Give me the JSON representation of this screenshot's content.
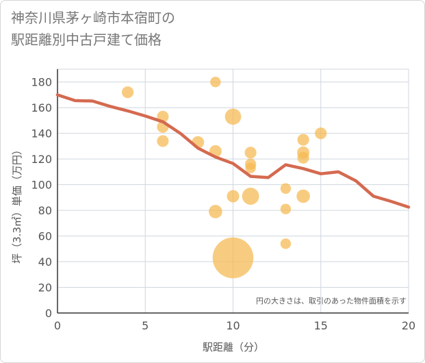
{
  "title_line1": "神奈川県茅ヶ崎市本宿町の",
  "title_line2": "駅距離別中古戸建て価格",
  "chart_data": {
    "type": "scatter",
    "xlabel": "駅距離（分）",
    "ylabel": "坪（3.3㎡）単価（万円）",
    "xlim": [
      0,
      20
    ],
    "ylim": [
      0,
      190
    ],
    "x_ticks": [
      0,
      5,
      10,
      15,
      20
    ],
    "y_ticks": [
      0,
      20,
      40,
      60,
      80,
      100,
      120,
      140,
      160,
      180
    ],
    "grid": true,
    "note": "円の大きさは、取引のあった物件面積を示す",
    "colors": {
      "bubble": "#f5b94f",
      "line": "#d46a50",
      "grid": "#cfd6de"
    },
    "points": [
      {
        "x": 4,
        "y": 172,
        "size": 1
      },
      {
        "x": 9,
        "y": 180,
        "size": 0.8
      },
      {
        "x": 6,
        "y": 153,
        "size": 1
      },
      {
        "x": 6,
        "y": 145,
        "size": 1
      },
      {
        "x": 6,
        "y": 134,
        "size": 1
      },
      {
        "x": 8,
        "y": 133,
        "size": 1.1
      },
      {
        "x": 9,
        "y": 126,
        "size": 1.1
      },
      {
        "x": 9,
        "y": 79,
        "size": 1.3
      },
      {
        "x": 10,
        "y": 153,
        "size": 1.9
      },
      {
        "x": 10,
        "y": 91,
        "size": 1.1
      },
      {
        "x": 10,
        "y": 43,
        "size": 12
      },
      {
        "x": 11,
        "y": 125,
        "size": 1
      },
      {
        "x": 11,
        "y": 116,
        "size": 0.9
      },
      {
        "x": 11,
        "y": 113,
        "size": 0.8
      },
      {
        "x": 11,
        "y": 91,
        "size": 2.1
      },
      {
        "x": 13,
        "y": 97,
        "size": 0.8
      },
      {
        "x": 13,
        "y": 81,
        "size": 0.8
      },
      {
        "x": 13,
        "y": 54,
        "size": 0.8
      },
      {
        "x": 14,
        "y": 135,
        "size": 1
      },
      {
        "x": 14,
        "y": 125,
        "size": 1.1
      },
      {
        "x": 14,
        "y": 121,
        "size": 1
      },
      {
        "x": 14,
        "y": 91,
        "size": 1.3
      },
      {
        "x": 15,
        "y": 140,
        "size": 1
      }
    ],
    "trend": [
      {
        "x": 0,
        "y": 170
      },
      {
        "x": 1,
        "y": 165.5
      },
      {
        "x": 2,
        "y": 165.2
      },
      {
        "x": 3,
        "y": 161
      },
      {
        "x": 4,
        "y": 157.5
      },
      {
        "x": 5,
        "y": 153.5
      },
      {
        "x": 6,
        "y": 149
      },
      {
        "x": 7,
        "y": 140
      },
      {
        "x": 8,
        "y": 128.5
      },
      {
        "x": 9,
        "y": 121.5
      },
      {
        "x": 10,
        "y": 116.5
      },
      {
        "x": 11,
        "y": 106.5
      },
      {
        "x": 12,
        "y": 105.5
      },
      {
        "x": 13,
        "y": 115.5
      },
      {
        "x": 14,
        "y": 112.5
      },
      {
        "x": 15,
        "y": 108.5
      },
      {
        "x": 16,
        "y": 110
      },
      {
        "x": 17,
        "y": 103
      },
      {
        "x": 18,
        "y": 91
      },
      {
        "x": 19,
        "y": 87
      },
      {
        "x": 20,
        "y": 82.5
      }
    ]
  }
}
